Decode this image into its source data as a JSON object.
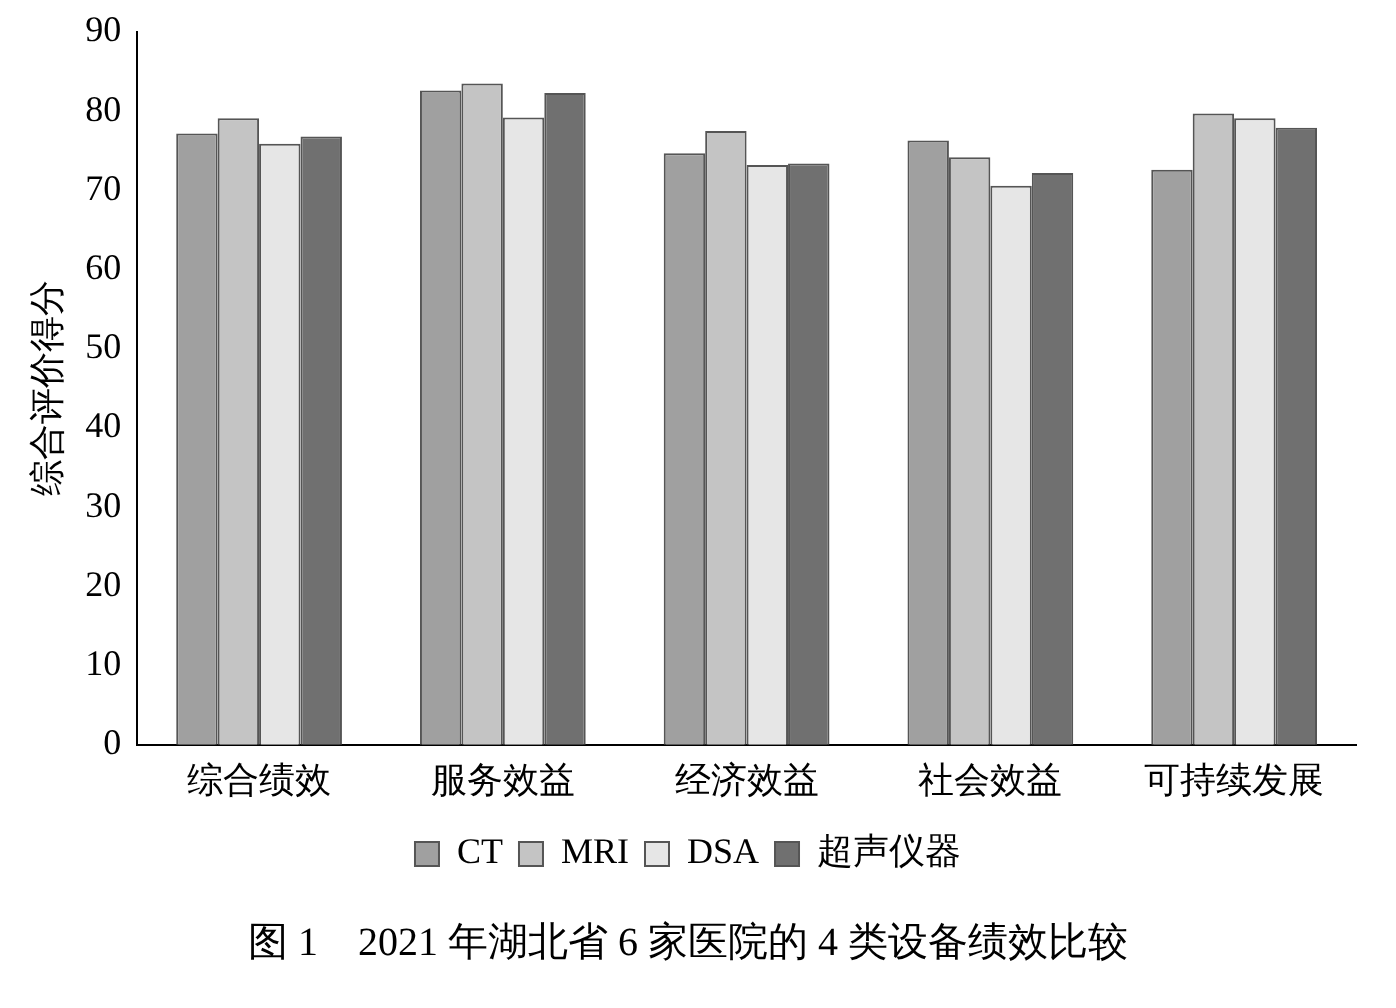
{
  "chart_data": {
    "type": "bar",
    "title": "图 1　2021 年湖北省 6 家医院的 4 类设备绩效比较",
    "ylabel": "综合评价得分",
    "categories": [
      "综合绩效",
      "服务效益",
      "经济效益",
      "社会效益",
      "可持续发展"
    ],
    "series": [
      {
        "name": "CT",
        "color": "#a0a0a0",
        "values": [
          77.2,
          82.6,
          74.7,
          76.3,
          72.6
        ]
      },
      {
        "name": "MRI",
        "color": "#c4c4c4",
        "values": [
          79.1,
          83.5,
          77.5,
          74.2,
          79.7
        ]
      },
      {
        "name": "DSA",
        "color": "#e6e6e6",
        "values": [
          75.9,
          79.2,
          73.2,
          70.6,
          79.1
        ]
      },
      {
        "name": "超声仪器",
        "color": "#707070",
        "values": [
          76.8,
          82.3,
          73.4,
          72.2,
          77.9
        ]
      }
    ],
    "ylim": [
      0,
      90
    ],
    "yticks": [
      0,
      10,
      20,
      30,
      40,
      50,
      60,
      70,
      80,
      90
    ],
    "grid": false,
    "legend": "bottom"
  }
}
